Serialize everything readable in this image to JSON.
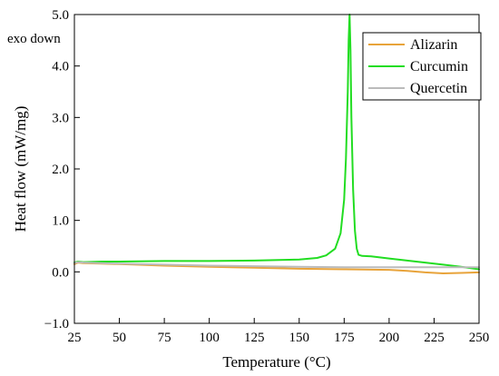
{
  "chart_data": {
    "type": "line",
    "title": "",
    "xlabel": "Temperature (°C)",
    "ylabel": "Heat flow (mW/mg)",
    "annotation": "exo down",
    "xlim": [
      25,
      250
    ],
    "ylim": [
      -1.0,
      5.0
    ],
    "xticks": [
      25,
      50,
      75,
      100,
      125,
      150,
      175,
      200,
      225,
      250
    ],
    "yticks": [
      -1.0,
      0.0,
      1.0,
      2.0,
      3.0,
      4.0,
      5.0
    ],
    "ytick_labels": [
      "−1.0",
      "0.0",
      "1.0",
      "2.0",
      "3.0",
      "4.0",
      "5.0"
    ],
    "grid": false,
    "legend_position": "top-right",
    "series": [
      {
        "name": "Alizarin",
        "color": "#E8A33A",
        "x": [
          25,
          27,
          30,
          40,
          50,
          75,
          100,
          125,
          150,
          175,
          200,
          210,
          220,
          230,
          240,
          250
        ],
        "y": [
          0.15,
          0.18,
          0.17,
          0.16,
          0.15,
          0.12,
          0.1,
          0.08,
          0.06,
          0.05,
          0.04,
          0.02,
          -0.01,
          -0.03,
          -0.02,
          -0.01
        ]
      },
      {
        "name": "Curcumin",
        "color": "#22DD22",
        "x": [
          25,
          27,
          30,
          40,
          50,
          75,
          100,
          125,
          150,
          160,
          165,
          170,
          173,
          175,
          176,
          177,
          177.5,
          178,
          178.5,
          179,
          180,
          181,
          182,
          183,
          185,
          190,
          200,
          210,
          220,
          230,
          240,
          250
        ],
        "y": [
          0.18,
          0.2,
          0.19,
          0.2,
          0.2,
          0.21,
          0.21,
          0.22,
          0.24,
          0.27,
          0.32,
          0.45,
          0.75,
          1.4,
          2.2,
          3.5,
          4.5,
          5.0,
          4.3,
          3.0,
          1.6,
          0.8,
          0.45,
          0.33,
          0.31,
          0.3,
          0.26,
          0.22,
          0.18,
          0.14,
          0.1,
          0.05
        ]
      },
      {
        "name": "Quercetin",
        "color": "#BBBBBB",
        "x": [
          25,
          27,
          30,
          40,
          50,
          75,
          100,
          125,
          150,
          175,
          200,
          225,
          250
        ],
        "y": [
          0.17,
          0.19,
          0.18,
          0.17,
          0.16,
          0.14,
          0.12,
          0.11,
          0.1,
          0.09,
          0.09,
          0.09,
          0.09
        ]
      }
    ]
  }
}
